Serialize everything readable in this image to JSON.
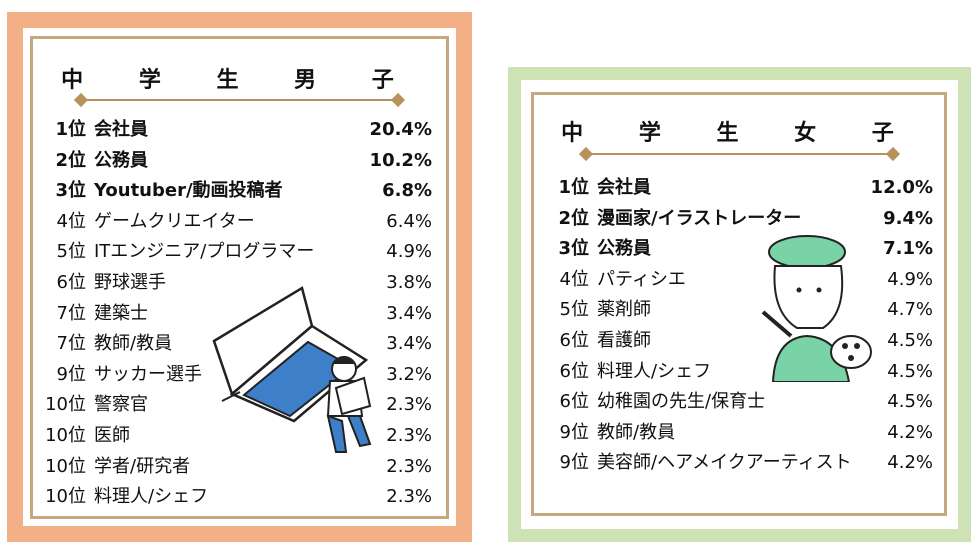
{
  "boys": {
    "title": "中 学 生 男 子",
    "rows": [
      {
        "rank": "1位",
        "job": "会社員",
        "pct": "20.4%"
      },
      {
        "rank": "2位",
        "job": "公務員",
        "pct": "10.2%"
      },
      {
        "rank": "3位",
        "job": "Youtuber/動画投稿者",
        "pct": "6.8%"
      },
      {
        "rank": "4位",
        "job": "ゲームクリエイター",
        "pct": "6.4%"
      },
      {
        "rank": "5位",
        "job": "ITエンジニア/プログラマー",
        "pct": "4.9%"
      },
      {
        "rank": "6位",
        "job": "野球選手",
        "pct": "3.8%"
      },
      {
        "rank": "7位",
        "job": "建築士",
        "pct": "3.4%"
      },
      {
        "rank": "7位",
        "job": "教師/教員",
        "pct": "3.4%"
      },
      {
        "rank": "9位",
        "job": "サッカー選手",
        "pct": "3.2%"
      },
      {
        "rank": "10位",
        "job": "警察官",
        "pct": "2.3%"
      },
      {
        "rank": "10位",
        "job": "医師",
        "pct": "2.3%"
      },
      {
        "rank": "10位",
        "job": "学者/研究者",
        "pct": "2.3%"
      },
      {
        "rank": "10位",
        "job": "料理人/シェフ",
        "pct": "2.3%"
      }
    ]
  },
  "girls": {
    "title": "中 学 生 女 子",
    "rows": [
      {
        "rank": "1位",
        "job": "会社員",
        "pct": "12.0%"
      },
      {
        "rank": "2位",
        "job": "漫画家/イラストレーター",
        "pct": "9.4%"
      },
      {
        "rank": "3位",
        "job": "公務員",
        "pct": "7.1%"
      },
      {
        "rank": "4位",
        "job": "パティシエ",
        "pct": "4.9%"
      },
      {
        "rank": "5位",
        "job": "薬剤師",
        "pct": "4.7%"
      },
      {
        "rank": "6位",
        "job": "看護師",
        "pct": "4.5%"
      },
      {
        "rank": "6位",
        "job": "料理人/シェフ",
        "pct": "4.5%"
      },
      {
        "rank": "6位",
        "job": "幼稚園の先生/保育士",
        "pct": "4.5%"
      },
      {
        "rank": "9位",
        "job": "教師/教員",
        "pct": "4.2%"
      },
      {
        "rank": "9位",
        "job": "美容師/ヘアメイクアーティスト",
        "pct": "4.2%"
      }
    ]
  },
  "colors": {
    "boys_frame": "#f3b087",
    "girls_frame": "#cde3b6",
    "gold": "#b7925a",
    "accent_blue": "#3d7fc9",
    "accent_green": "#7ad3a6"
  },
  "illustrations": {
    "boys": "laptop-boy-illustration",
    "girls": "painter-girl-illustration"
  }
}
